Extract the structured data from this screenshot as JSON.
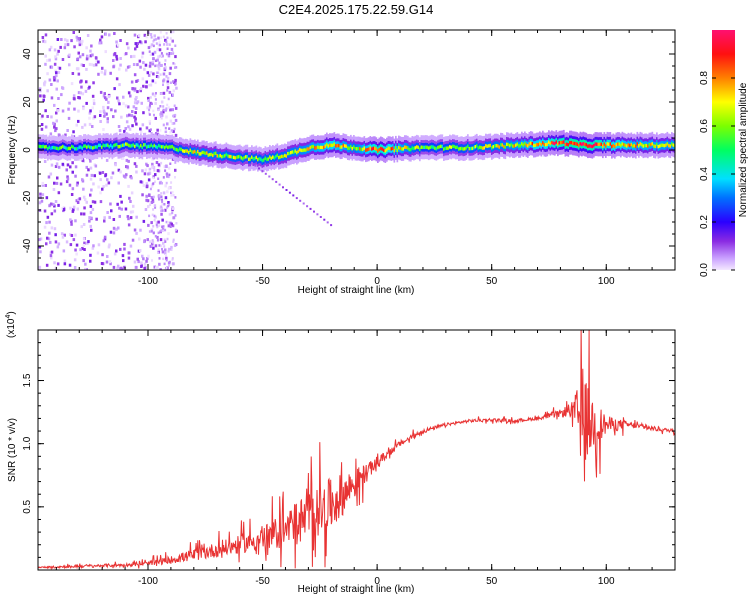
{
  "title": "C2E4.2025.175.22.59.G14",
  "chart_data": [
    {
      "type": "heatmap",
      "xlabel": "Height of straight line (km)",
      "ylabel": "Frequency (Hz)",
      "xlim": [
        -148,
        130
      ],
      "ylim": [
        -50,
        50
      ],
      "xticks": [
        -100,
        -50,
        0,
        50,
        100
      ],
      "xtick_labels": [
        "-100",
        "-50",
        "0",
        "50",
        "100"
      ],
      "yticks": [
        -40,
        -20,
        0,
        20,
        40
      ],
      "ytick_labels": [
        "-40",
        "-20",
        "0",
        "20",
        "40"
      ],
      "colorbar": {
        "label": "Normalized spectral amplitude",
        "range": [
          0,
          1
        ],
        "ticks": [
          0,
          0.2,
          0.4,
          0.6,
          0.8
        ],
        "tick_labels": [
          "0.0",
          "0.2",
          "0.4",
          "0.6",
          "0.8"
        ]
      },
      "ridge": {
        "x": [
          -148,
          -130,
          -110,
          -90,
          -80,
          -70,
          -60,
          -50,
          -40,
          -30,
          -20,
          -10,
          0,
          20,
          40,
          60,
          80,
          90,
          100,
          110,
          130
        ],
        "frequency": [
          1,
          1,
          2,
          1,
          -1,
          -2,
          -3,
          -4,
          -2,
          1,
          2,
          1,
          0,
          1,
          1,
          2,
          3,
          2,
          2,
          2,
          2
        ],
        "amplitude": [
          0.45,
          0.45,
          0.5,
          0.5,
          0.6,
          0.6,
          0.55,
          0.55,
          0.6,
          0.65,
          0.75,
          0.6,
          0.85,
          0.5,
          0.55,
          0.65,
          0.85,
          0.9,
          0.8,
          0.7,
          0.65
        ]
      },
      "grid": false
    },
    {
      "type": "line",
      "xlabel": "Height of straight line (km)",
      "ylabel": "SNR (10 * v/v)",
      "scale_label": "(x10",
      "scale_exp": "4",
      "scale_close": ")",
      "xlim": [
        -148,
        130
      ],
      "ylim": [
        0,
        1.9
      ],
      "xticks": [
        -100,
        -50,
        0,
        50,
        100
      ],
      "xtick_labels": [
        "-100",
        "-50",
        "0",
        "50",
        "100"
      ],
      "yticks": [
        0.5,
        1.0,
        1.5
      ],
      "ytick_labels": [
        "0.5",
        "1.0",
        "1.5"
      ],
      "color": "#e83333",
      "series": [
        {
          "x": [
            -148,
            -130,
            -110,
            -100,
            -90,
            -80,
            -70,
            -60,
            -50,
            -40,
            -30,
            -20,
            -10,
            0,
            10,
            20,
            30,
            40,
            50,
            60,
            70,
            80,
            85,
            90,
            95,
            100,
            110,
            120,
            130
          ],
          "values": [
            0.02,
            0.03,
            0.04,
            0.05,
            0.08,
            0.12,
            0.16,
            0.2,
            0.25,
            0.32,
            0.42,
            0.52,
            0.68,
            0.85,
            1.0,
            1.1,
            1.15,
            1.18,
            1.19,
            1.18,
            1.2,
            1.24,
            1.27,
            1.2,
            1.15,
            1.15,
            1.15,
            1.12,
            1.1
          ],
          "noise": [
            0.01,
            0.02,
            0.02,
            0.03,
            0.05,
            0.08,
            0.1,
            0.12,
            0.15,
            0.25,
            0.35,
            0.35,
            0.2,
            0.06,
            0.04,
            0.03,
            0.02,
            0.02,
            0.02,
            0.02,
            0.02,
            0.05,
            0.1,
            0.6,
            0.35,
            0.12,
            0.04,
            0.03,
            0.02
          ]
        }
      ],
      "grid": false
    }
  ]
}
